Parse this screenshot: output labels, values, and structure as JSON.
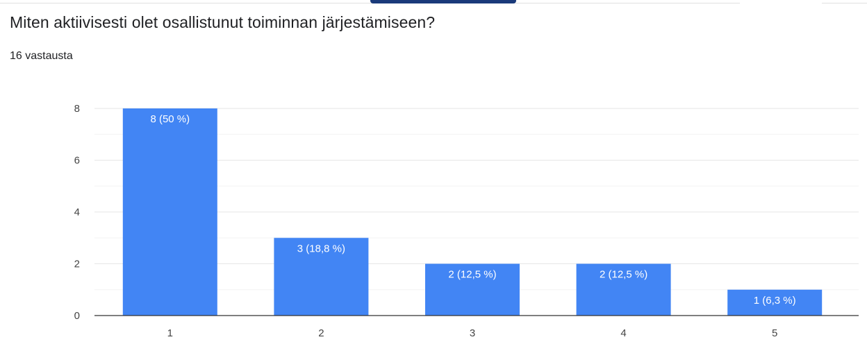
{
  "header": {
    "question": "Miten aktiivisesti olet osallistunut toiminnan järjestämiseen?",
    "response_count": "16 vastausta"
  },
  "colors": {
    "bar": "#4285f4",
    "grid": "#ececec",
    "axis": "#333333"
  },
  "chart_data": {
    "type": "bar",
    "title": "Miten aktiivisesti olet osallistunut toiminnan järjestämiseen?",
    "xlabel": "",
    "ylabel": "",
    "categories": [
      "1",
      "2",
      "3",
      "4",
      "5"
    ],
    "values": [
      8,
      3,
      2,
      2,
      1
    ],
    "data_labels": [
      "8 (50 %)",
      "3 (18,8 %)",
      "2 (12,5 %)",
      "2 (12,5 %)",
      "1 (6,3 %)"
    ],
    "ylim": [
      0,
      8
    ],
    "yticks": [
      "0",
      "2",
      "4",
      "6",
      "8"
    ],
    "grid": true,
    "legend": "none"
  }
}
